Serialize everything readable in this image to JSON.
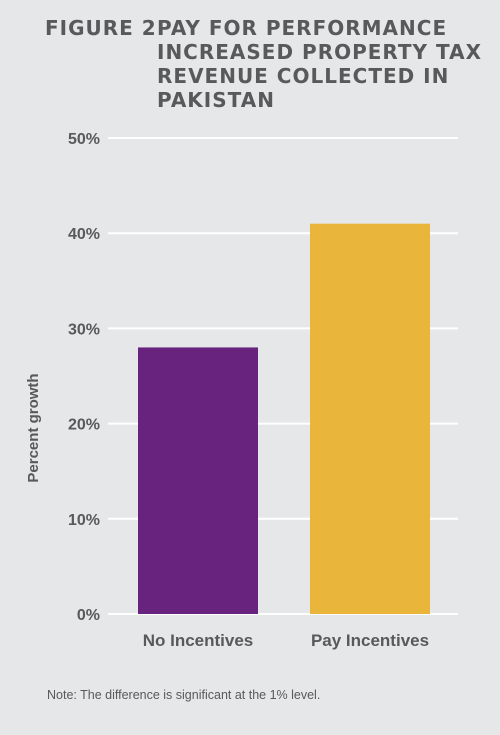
{
  "figure": {
    "label": "FIGURE 2:",
    "title_lines": [
      "PAY FOR PERFORMANCE",
      "INCREASED PROPERTY TAX",
      "REVENUE COLLECTED IN",
      "PAKISTAN"
    ]
  },
  "chart_data": {
    "type": "bar",
    "categories": [
      "No Incentives",
      "Pay Incentives"
    ],
    "values": [
      28,
      41
    ],
    "colors": [
      "#68237e",
      "#e9b53b"
    ],
    "ylabel": "Percent growth",
    "xlabel": "",
    "ylim": [
      0,
      50
    ],
    "y_ticks": [
      "0%",
      "10%",
      "20%",
      "30%",
      "40%",
      "50%"
    ],
    "y_tick_values": [
      0,
      10,
      20,
      30,
      40,
      50
    ],
    "grid": true,
    "gridline_color": "#ffffff"
  },
  "note": "Note:  The difference is significant at the 1% level."
}
